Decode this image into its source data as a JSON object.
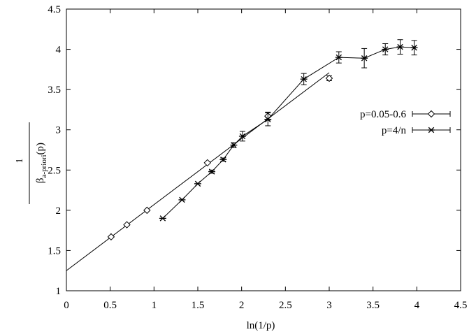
{
  "chart_data": {
    "type": "scatter",
    "title": "",
    "xlabel": "ln(1/p)",
    "ylabel_numerator": "1",
    "ylabel_main": "β",
    "ylabel_subscript": "a-priori",
    "ylabel_suffix": "(p)",
    "xlim": [
      0,
      4.5
    ],
    "ylim": [
      1,
      4.5
    ],
    "xticks": [
      "0",
      "0.5",
      "1",
      "1.5",
      "2",
      "2.5",
      "3",
      "3.5",
      "4",
      "4.5"
    ],
    "yticks": [
      "1",
      "1.5",
      "2",
      "2.5",
      "3",
      "3.5",
      "4",
      "4.5"
    ],
    "grid": false,
    "legend_position": "right",
    "series": [
      {
        "name": "p=0.05-0.6",
        "marker": "diamond",
        "x": [
          0.51,
          0.69,
          0.92,
          1.61,
          2.3,
          3.0
        ],
        "y": [
          1.67,
          1.82,
          2.0,
          2.59,
          3.17,
          3.64
        ],
        "err": [
          0.0,
          0.0,
          0.0,
          0.0,
          0.05,
          0.03
        ]
      },
      {
        "name": "p=4/n",
        "marker": "star",
        "x": [
          1.1,
          1.32,
          1.5,
          1.66,
          1.79,
          1.91,
          2.01,
          2.3,
          2.71,
          3.11,
          3.4,
          3.64,
          3.81,
          3.97
        ],
        "y": [
          1.9,
          2.13,
          2.33,
          2.48,
          2.63,
          2.81,
          2.92,
          3.13,
          3.63,
          3.9,
          3.89,
          4.0,
          4.03,
          4.02
        ],
        "err": [
          0.0,
          0.0,
          0.0,
          0.02,
          0.02,
          0.03,
          0.06,
          0.08,
          0.07,
          0.07,
          0.12,
          0.07,
          0.09,
          0.09
        ]
      }
    ],
    "fit_line": {
      "intercept": 1.25,
      "slope": 0.82,
      "x_range": [
        0,
        3.0
      ]
    }
  }
}
